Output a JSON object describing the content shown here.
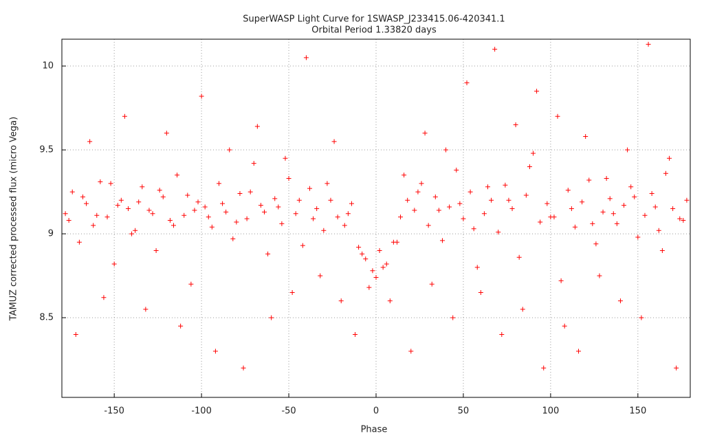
{
  "chart_data": {
    "type": "scatter",
    "title": "SuperWASP Light Curve for 1SWASP_J233415.06-420341.1",
    "subtitle": "Orbital Period 1.33820 days",
    "x_label": "Phase",
    "y_label": "TAMUZ corrected processed flux (micro Vega)",
    "xlim": [
      -180,
      180
    ],
    "ylim": [
      8.025,
      10.16
    ],
    "xticks": [
      -150,
      -100,
      -50,
      0,
      50,
      100,
      150
    ],
    "yticks": [
      8.5,
      9,
      9.5,
      10
    ],
    "grid": true,
    "series": [
      {
        "color": "#ff0000",
        "x": [
          -178,
          -174,
          -170,
          -166,
          -162,
          -158,
          -154,
          -150,
          -146,
          -142,
          -138,
          -134,
          -130,
          -126,
          -122,
          -118,
          -114,
          -110,
          -106,
          -102,
          -98,
          -94,
          -90,
          -86,
          -82,
          -78,
          -74,
          -70,
          -66,
          -62,
          -58,
          -54,
          -50,
          -46,
          -42,
          -38,
          -34,
          -30,
          -26,
          -22,
          -18,
          -14,
          -10,
          -6,
          -2,
          2,
          6,
          10,
          14,
          18,
          22,
          26,
          30,
          34,
          38,
          42,
          46,
          50,
          54,
          58,
          62,
          66,
          70,
          74,
          78,
          82,
          86,
          90,
          94,
          98,
          102,
          106,
          110,
          114,
          118,
          122,
          126,
          130,
          134,
          138,
          142,
          146,
          150,
          154,
          158,
          162,
          166,
          170,
          174,
          178,
          -176,
          -172,
          -168,
          -164,
          -160,
          -156,
          -152,
          -148,
          -144,
          -140,
          -136,
          -132,
          -128,
          -124,
          -120,
          -116,
          -112,
          -108,
          -104,
          -100,
          -96,
          -92,
          -88,
          -84,
          -80,
          -76,
          -72,
          -68,
          -64,
          -60,
          -56,
          -52,
          -48,
          -44,
          -40,
          -36,
          -32,
          -28,
          -24,
          -20,
          -16,
          -12,
          -8,
          -4,
          0,
          4,
          8,
          12,
          16,
          20,
          24,
          28,
          32,
          36,
          40,
          44,
          48,
          52,
          56,
          60,
          64,
          68,
          72,
          76,
          80,
          84,
          88,
          92,
          96,
          100,
          104,
          108,
          112,
          116,
          120,
          124,
          128,
          132,
          136,
          140,
          144,
          148,
          152,
          156,
          160,
          164,
          168,
          172,
          176
        ],
        "values": [
          9.12,
          9.25,
          8.95,
          9.18,
          9.05,
          9.31,
          9.1,
          8.82,
          9.2,
          9.15,
          9.02,
          9.28,
          9.14,
          8.9,
          9.22,
          9.08,
          9.35,
          9.11,
          8.7,
          9.19,
          9.16,
          9.04,
          9.3,
          9.13,
          8.97,
          9.24,
          9.09,
          9.42,
          9.17,
          8.88,
          9.21,
          9.06,
          9.33,
          9.12,
          8.93,
          9.27,
          9.15,
          9.02,
          9.2,
          9.1,
          9.05,
          9.18,
          8.92,
          8.85,
          8.78,
          8.9,
          8.82,
          8.95,
          9.1,
          9.2,
          9.14,
          9.3,
          9.05,
          9.22,
          8.96,
          9.16,
          9.38,
          9.09,
          9.25,
          8.8,
          9.12,
          9.2,
          9.01,
          9.29,
          9.15,
          8.86,
          9.23,
          9.48,
          9.07,
          9.18,
          9.1,
          8.72,
          9.26,
          9.04,
          9.19,
          9.32,
          8.94,
          9.13,
          9.21,
          9.06,
          9.17,
          9.28,
          8.98,
          9.11,
          9.24,
          9.02,
          9.36,
          9.15,
          9.09,
          9.2,
          9.08,
          8.4,
          9.22,
          9.55,
          9.11,
          8.62,
          9.3,
          9.17,
          9.7,
          9.0,
          9.19,
          8.55,
          9.12,
          9.26,
          9.6,
          9.05,
          8.45,
          9.23,
          9.14,
          9.82,
          9.1,
          8.3,
          9.18,
          9.5,
          9.07,
          8.2,
          9.25,
          9.64,
          9.13,
          8.5,
          9.16,
          9.45,
          8.65,
          9.2,
          10.05,
          9.09,
          8.75,
          9.3,
          9.55,
          8.6,
          9.12,
          8.4,
          8.88,
          8.68,
          8.74,
          8.8,
          8.6,
          8.95,
          9.35,
          8.3,
          9.25,
          9.6,
          8.7,
          9.14,
          9.5,
          8.5,
          9.18,
          9.9,
          9.03,
          8.65,
          9.28,
          10.1,
          8.4,
          9.2,
          9.65,
          8.55,
          9.4,
          9.85,
          8.2,
          9.1,
          9.7,
          8.45,
          9.15,
          8.3,
          9.58,
          9.06,
          8.75,
          9.33,
          9.12,
          8.6,
          9.5,
          9.22,
          8.5,
          10.13,
          9.16,
          8.9,
          9.45,
          8.2,
          9.08
        ]
      }
    ]
  }
}
